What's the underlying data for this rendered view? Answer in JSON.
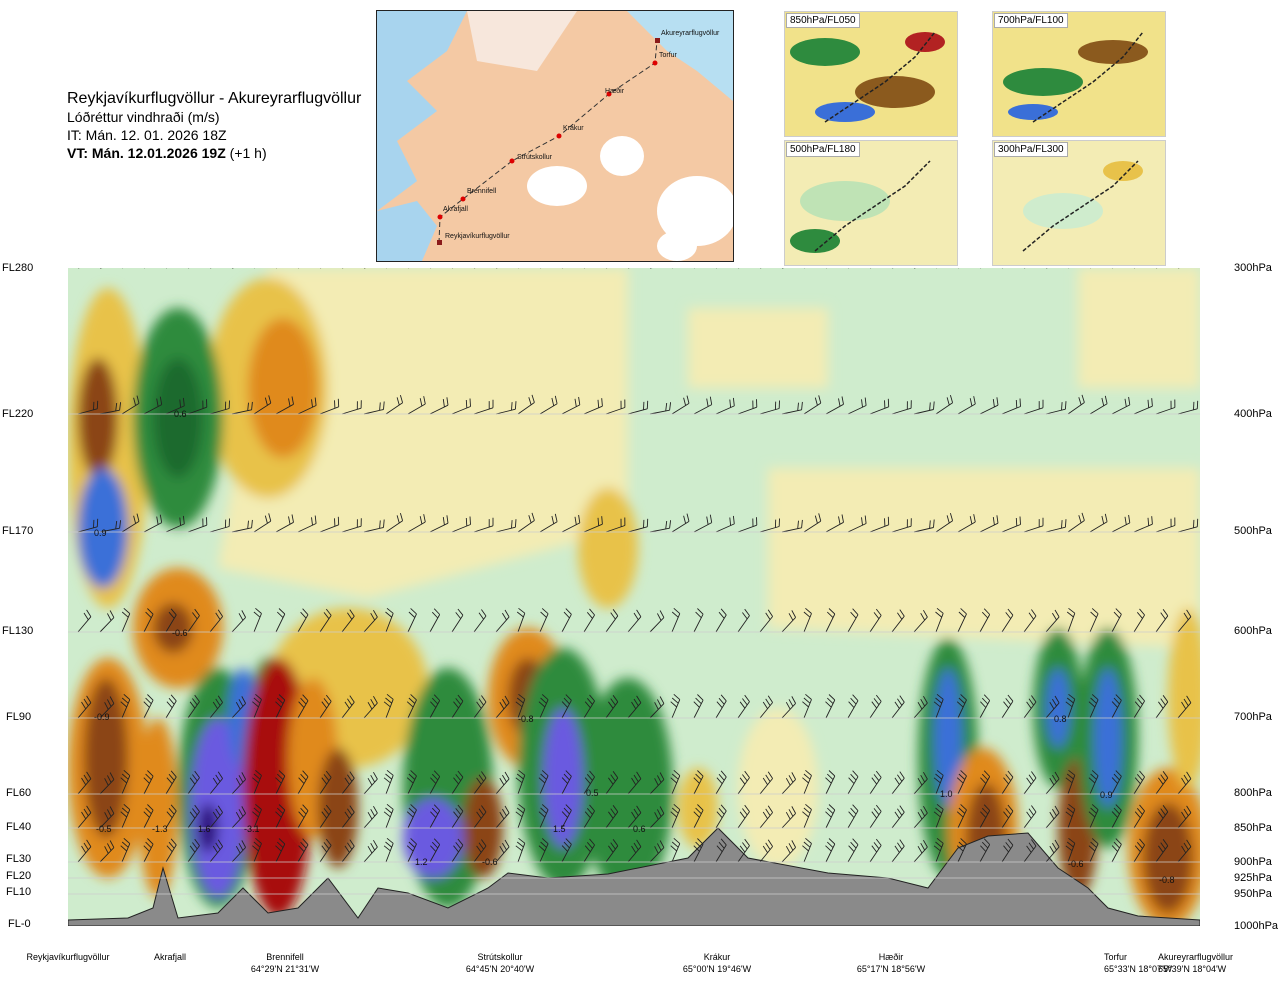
{
  "header": {
    "route": "Reykjavíkurflugvöllur - Akureyrarflugvöllur",
    "quantity": "Lóðréttur vindhraði (m/s)",
    "it": "IT: Mán. 12. 01. 2026 18Z",
    "vt_bold": "VT: Mán. 12.01.2026 19Z",
    "vt_suffix": " (+1 h)"
  },
  "map": {
    "labels": [
      "Akureyrarflugvöllur",
      "Torfur",
      "Hæðir",
      "Krákur",
      "Strútskollur",
      "Brennifell",
      "Akrafjall",
      "Reykjavíkurflugvöllur"
    ]
  },
  "minimaps": [
    {
      "label": "850hPa/FL050"
    },
    {
      "label": "700hPa/FL100"
    },
    {
      "label": "500hPa/FL180"
    },
    {
      "label": "300hPa/FL300"
    }
  ],
  "levels_left": [
    "FL280",
    "FL220",
    "FL170",
    "FL130",
    "FL90",
    "FL60",
    "FL40",
    "FL30",
    "FL20",
    "FL10",
    "FL-0"
  ],
  "levels_right": [
    "300hPa",
    "400hPa",
    "500hPa",
    "600hPa",
    "700hPa",
    "800hPa",
    "850hPa",
    "900hPa",
    "925hPa",
    "950hPa",
    "1000hPa"
  ],
  "locations": [
    {
      "name": "Reykjavíkurflugvöllur",
      "coord": ""
    },
    {
      "name": "Akrafjall",
      "coord": ""
    },
    {
      "name": "Brennifell",
      "coord": "64°29'N 21°31'W"
    },
    {
      "name": "Strútskollur",
      "coord": "64°45'N 20°40'W"
    },
    {
      "name": "Krákur",
      "coord": "65°00'N 19°46'W"
    },
    {
      "name": "Hæðir",
      "coord": "65°17'N 18°56'W"
    },
    {
      "name": "Torfur",
      "coord": "65°33'N 18°07'W"
    },
    {
      "name": "Akureyrarflugvöllur",
      "coord": "65°39'N 18°04'W"
    }
  ],
  "chart_data": {
    "type": "heatmap",
    "title": "Lóðréttur vindhraði (m/s)",
    "y_levels_hpa": [
      300,
      400,
      500,
      600,
      700,
      800,
      850,
      900,
      925,
      950,
      1000
    ],
    "annotations": [
      {
        "value": "0.6",
        "position": "Akrafjall",
        "level_hpa": 400
      },
      {
        "value": "0.9",
        "position": "Reykjavíkurflugvöllur",
        "level_hpa": 500
      },
      {
        "value": "-0.6",
        "position": "Akrafjall",
        "level_hpa": 600
      },
      {
        "value": "-0.9",
        "position": "Reykjavíkurflugvöllur",
        "level_hpa": 700
      },
      {
        "value": "-0.8",
        "position": "Strútskollur",
        "level_hpa": 700
      },
      {
        "value": "0.8",
        "position": "Torfur",
        "level_hpa": 700
      },
      {
        "value": "-0.5",
        "position": "Reykjavíkurflugvöllur",
        "level_hpa": 850
      },
      {
        "value": "-1.3",
        "position": "Akrafjall",
        "level_hpa": 850
      },
      {
        "value": "1.6",
        "position": "Akrafjall",
        "level_hpa": 850
      },
      {
        "value": "-3.1",
        "position": "Brennifell",
        "level_hpa": 850
      },
      {
        "value": "1.2",
        "position": "Strútskollur",
        "level_hpa": 900
      },
      {
        "value": "-0.6",
        "position": "Strútskollur",
        "level_hpa": 900
      },
      {
        "value": "1.5",
        "position": "Strútskollur",
        "level_hpa": 850
      },
      {
        "value": "0.5",
        "position": "Strútskollur",
        "level_hpa": 800
      },
      {
        "value": "0.6",
        "position": "Krákur",
        "level_hpa": 850
      },
      {
        "value": "1.0",
        "position": "Hæðir",
        "level_hpa": 800
      },
      {
        "value": "0.9",
        "position": "Torfur",
        "level_hpa": 800
      },
      {
        "value": "-0.6",
        "position": "Torfur",
        "level_hpa": 900
      },
      {
        "value": "-0.8",
        "position": "Akureyrarflugvöllur",
        "level_hpa": 925
      }
    ]
  }
}
